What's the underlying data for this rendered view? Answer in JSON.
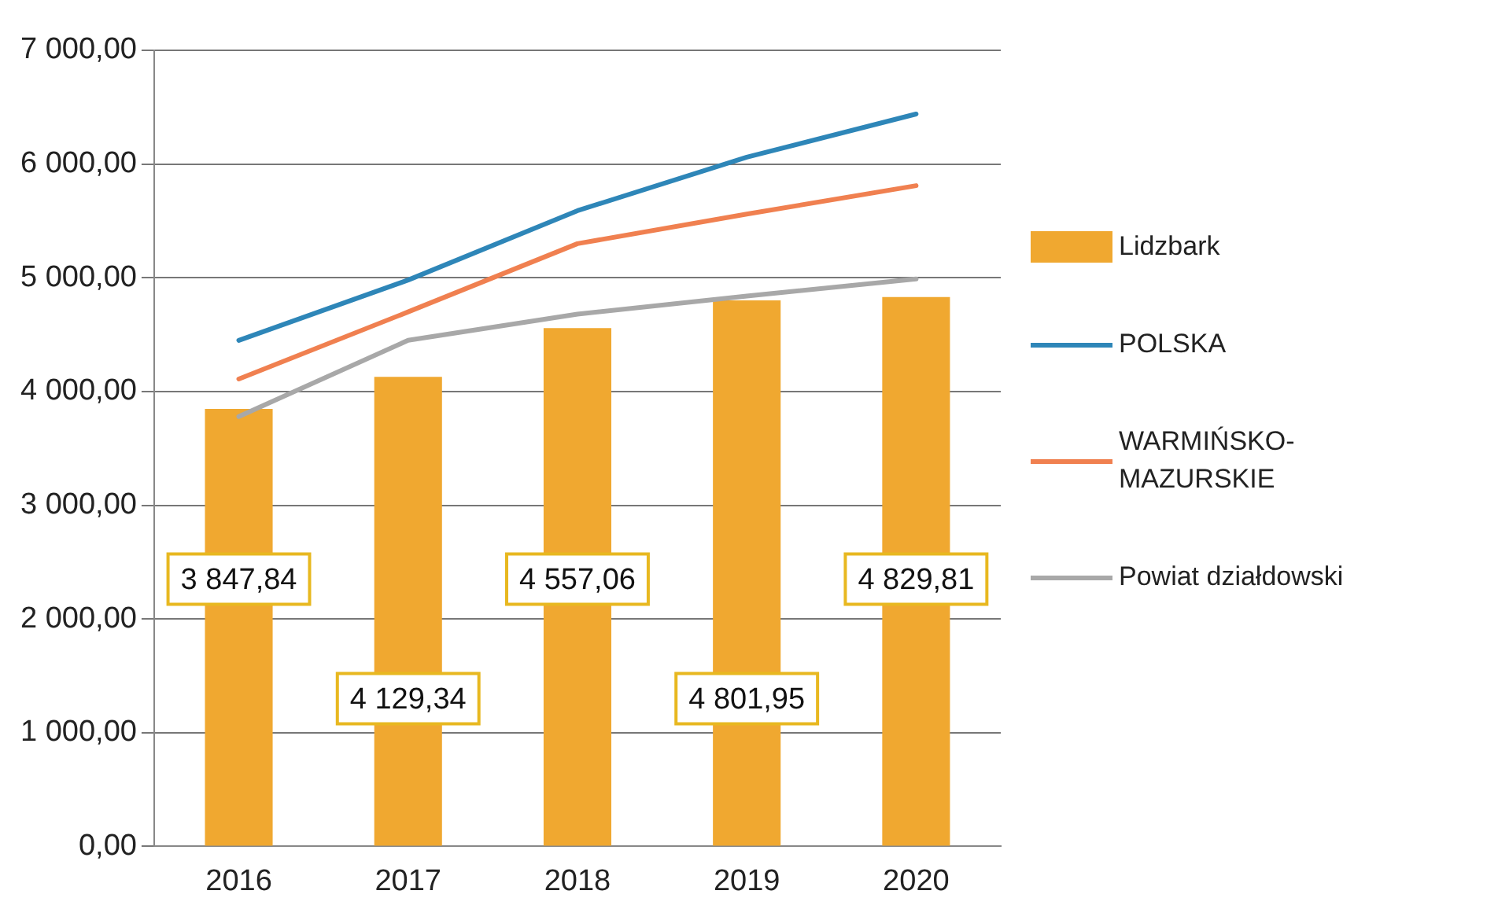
{
  "chart_data": {
    "type": "bar",
    "categories": [
      "2016",
      "2017",
      "2018",
      "2019",
      "2020"
    ],
    "series": [
      {
        "name": "Lidzbark",
        "color": "#f0a830",
        "values": [
          3847.84,
          4129.34,
          4557.06,
          4801.95,
          4829.81
        ],
        "value_labels": [
          "3 847,84",
          "4 129,34",
          "4 557,06",
          "4 801,95",
          "4 829,81"
        ]
      },
      {
        "name": "POLSKA",
        "type": "line",
        "color": "#2e86b8",
        "values": [
          4450,
          4980,
          5590,
          6060,
          6440
        ]
      },
      {
        "name": "WARMIŃSKO-MAZURSKIE",
        "type": "line",
        "color": "#f08050",
        "values": [
          4110,
          4700,
          5300,
          5560,
          5810
        ]
      },
      {
        "name": "Powiat działdowski",
        "type": "line",
        "color": "#a8a8a8",
        "values": [
          3780,
          4450,
          4680,
          4840,
          4990
        ]
      }
    ],
    "ylim": [
      0,
      7000
    ],
    "yticks": [
      {
        "value": 0,
        "label": "0,00"
      },
      {
        "value": 1000,
        "label": "1 000,00"
      },
      {
        "value": 2000,
        "label": "2 000,00"
      },
      {
        "value": 3000,
        "label": "3 000,00"
      },
      {
        "value": 4000,
        "label": "4 000,00"
      },
      {
        "value": 5000,
        "label": "5 000,00"
      },
      {
        "value": 6000,
        "label": "6 000,00"
      },
      {
        "value": 7000,
        "label": "7 000,00"
      }
    ],
    "grid": "y",
    "legend": "right",
    "marker": "none"
  }
}
